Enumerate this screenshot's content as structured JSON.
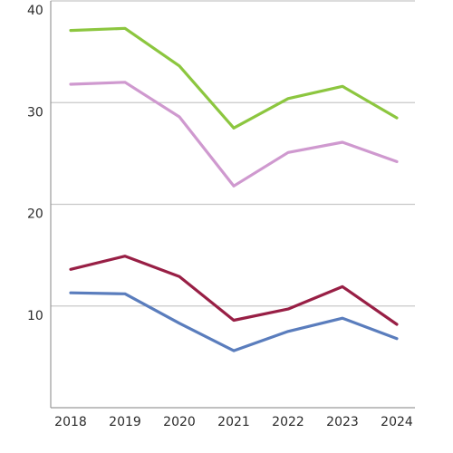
{
  "chart_data": {
    "type": "line",
    "title": "",
    "xlabel": "",
    "ylabel": "",
    "x": [
      "2018",
      "2019",
      "2020",
      "2021",
      "2022",
      "2023",
      "2024"
    ],
    "ylim": [
      0,
      40
    ],
    "yticks": [
      "10",
      "20",
      "30",
      "40"
    ],
    "grid": true,
    "legend": "none",
    "series": [
      {
        "color": "#8cc63f",
        "values": [
          37.1,
          37.3,
          33.6,
          27.5,
          30.4,
          31.6,
          28.5
        ]
      },
      {
        "color": "#cf99cf",
        "values": [
          31.8,
          32.0,
          28.6,
          21.8,
          25.1,
          26.1,
          24.2
        ]
      },
      {
        "color": "#981f45",
        "values": [
          13.6,
          14.9,
          12.9,
          8.6,
          9.7,
          11.9,
          8.2
        ]
      },
      {
        "color": "#5a7dbd",
        "values": [
          11.3,
          11.2,
          8.3,
          5.6,
          7.5,
          8.8,
          6.8
        ]
      }
    ]
  }
}
